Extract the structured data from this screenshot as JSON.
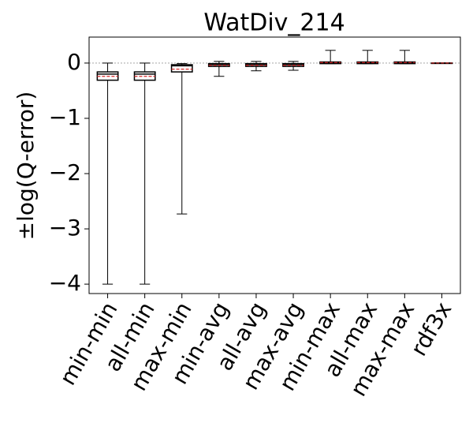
{
  "chart_data": {
    "type": "box",
    "title": "WatDiv_214",
    "y_label": "±log(Q-error)",
    "categories": [
      "min-min",
      "all-min",
      "max-min",
      "min-avg",
      "all-avg",
      "max-avg",
      "min-max",
      "all-max",
      "max-max",
      "rdf3x"
    ],
    "boxes": [
      {
        "whislo": -4.0,
        "q1": -0.31,
        "med": -0.2,
        "q3": -0.16,
        "whishi": 0,
        "mean": -0.24
      },
      {
        "whislo": -4.0,
        "q1": -0.31,
        "med": -0.2,
        "q3": -0.16,
        "whishi": 0,
        "mean": -0.24
      },
      {
        "whislo": -2.73,
        "q1": -0.16,
        "med": -0.05,
        "q3": -0.03,
        "whishi": -0.01,
        "mean": -0.11
      },
      {
        "whislo": -0.24,
        "q1": -0.06,
        "med": -0.03,
        "q3": -0.01,
        "whishi": 0.03,
        "mean": -0.04
      },
      {
        "whislo": -0.14,
        "q1": -0.06,
        "med": -0.03,
        "q3": -0.01,
        "whishi": 0.03,
        "mean": -0.04
      },
      {
        "whislo": -0.13,
        "q1": -0.06,
        "med": -0.03,
        "q3": -0.01,
        "whishi": 0.03,
        "mean": -0.04
      },
      {
        "whislo": -0.01,
        "q1": -0.01,
        "med": 0.01,
        "q3": 0.02,
        "whishi": 0.23,
        "mean": 0.01
      },
      {
        "whislo": -0.01,
        "q1": -0.01,
        "med": 0.01,
        "q3": 0.02,
        "whishi": 0.23,
        "mean": 0.01
      },
      {
        "whislo": -0.01,
        "q1": -0.01,
        "med": 0.01,
        "q3": 0.02,
        "whishi": 0.23,
        "mean": 0.01
      },
      {
        "whislo": 0,
        "q1": 0,
        "med": 0,
        "q3": 0,
        "whishi": 0,
        "mean": 0
      }
    ],
    "box_color": "#000000",
    "mean_color": "#d62728",
    "zero_line": true,
    "ylim": [
      -4.17,
      0.47
    ],
    "yticks": [
      {
        "value": -4,
        "label": "−4"
      },
      {
        "value": -3,
        "label": "−3"
      },
      {
        "value": -2,
        "label": "−2"
      },
      {
        "value": -1,
        "label": "−1"
      },
      0
    ]
  }
}
